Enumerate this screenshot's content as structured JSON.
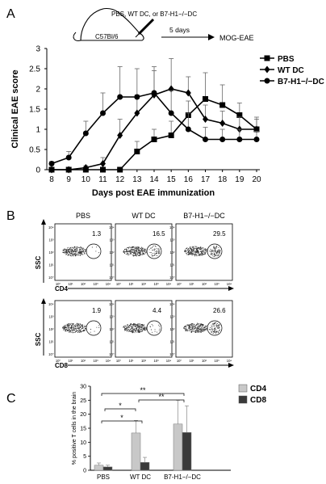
{
  "panel_labels": {
    "a": "A",
    "b": "B",
    "c": "C"
  },
  "schematic": {
    "mouse_label": "C57Bl/6",
    "injection_label": "PBS, WT DC, or B7-H1−/−DC",
    "arrow_label": "5 days",
    "endpoint_label": "MOG-EAE"
  },
  "chart_data": [
    {
      "id": "panel-a",
      "type": "line",
      "title": "",
      "xlabel": "Days post EAE immunization",
      "ylabel": "Clinical EAE score",
      "x": [
        8,
        9,
        10,
        11,
        12,
        13,
        14,
        15,
        16,
        17,
        18,
        19,
        20
      ],
      "xlim": [
        8,
        20
      ],
      "ylim": [
        0,
        3
      ],
      "yticks": [
        "0",
        "0.5",
        "1",
        "1.5",
        "2",
        "2.5",
        "3"
      ],
      "xticks": [
        "8",
        "9",
        "10",
        "11",
        "12",
        "13",
        "14",
        "15",
        "16",
        "17",
        "18",
        "19",
        "20"
      ],
      "legend_position": "top-right",
      "series": [
        {
          "name": "PBS",
          "marker": "square",
          "values": [
            0,
            0,
            0,
            0,
            0,
            0.45,
            0.75,
            0.85,
            1.35,
            1.75,
            1.6,
            1.35,
            1.0
          ],
          "errors": [
            0,
            0,
            0,
            0,
            0,
            0.25,
            0.25,
            0.35,
            0.35,
            0.65,
            0.5,
            0.3,
            0.3
          ]
        },
        {
          "name": "WT DC",
          "marker": "diamond",
          "values": [
            0,
            0,
            0.05,
            0.15,
            0.85,
            1.4,
            1.85,
            2.0,
            1.9,
            1.25,
            1.15,
            1.0,
            1.0
          ],
          "errors": [
            0,
            0,
            0.05,
            0.15,
            0.4,
            0.45,
            0.6,
            0.75,
            0.4,
            0.35,
            0.3,
            0.3,
            0.25
          ]
        },
        {
          "name": "B7-H1−/−DC",
          "marker": "circle",
          "values": [
            0.15,
            0.3,
            0.9,
            1.4,
            1.8,
            1.8,
            1.9,
            1.4,
            1.0,
            0.75,
            0.75,
            0.75,
            0.75
          ],
          "errors": [
            0.05,
            0.15,
            0.3,
            0.5,
            0.75,
            0.7,
            0.65,
            0.55,
            0.4,
            0.3,
            0.25,
            0.25,
            0.2
          ]
        }
      ]
    },
    {
      "id": "panel-c",
      "type": "bar",
      "title": "",
      "xlabel": "",
      "ylabel": "% positive T cells in the brain",
      "categories": [
        "PBS",
        "WT DC",
        "B7-H1−/−DC"
      ],
      "ylim": [
        0,
        30
      ],
      "yticks": [
        "0",
        "5",
        "10",
        "15",
        "20",
        "25",
        "30"
      ],
      "legend_position": "top-right",
      "series": [
        {
          "name": "CD4",
          "color": "#c8c8c8",
          "values": [
            1.8,
            13.3,
            16.5
          ],
          "errors": [
            0.8,
            4.5,
            8.5
          ]
        },
        {
          "name": "CD8",
          "color": "#3a3a3a",
          "values": [
            1.2,
            2.8,
            13.5
          ],
          "errors": [
            0.6,
            1.8,
            9.5
          ]
        }
      ],
      "significance": [
        {
          "from": 0,
          "to": 1,
          "label": "*"
        },
        {
          "from": 0,
          "to": 1,
          "label": "*"
        },
        {
          "from": 0,
          "to": 2,
          "label": "**"
        },
        {
          "from": 1,
          "to": 2,
          "label": "**"
        }
      ]
    }
  ],
  "flow": {
    "columns": [
      "PBS",
      "WT DC",
      "B7-H1−/−DC"
    ],
    "y_axis_label": "SSC",
    "rows": [
      {
        "marker": "CD4",
        "percentages": [
          "1.3",
          "16.5",
          "29.5"
        ]
      },
      {
        "marker": "CD8",
        "percentages": [
          "1.9",
          "4.4",
          "26.6"
        ]
      }
    ],
    "tick_labels": [
      "10⁰",
      "10¹",
      "10²",
      "10³",
      "10⁴"
    ]
  }
}
